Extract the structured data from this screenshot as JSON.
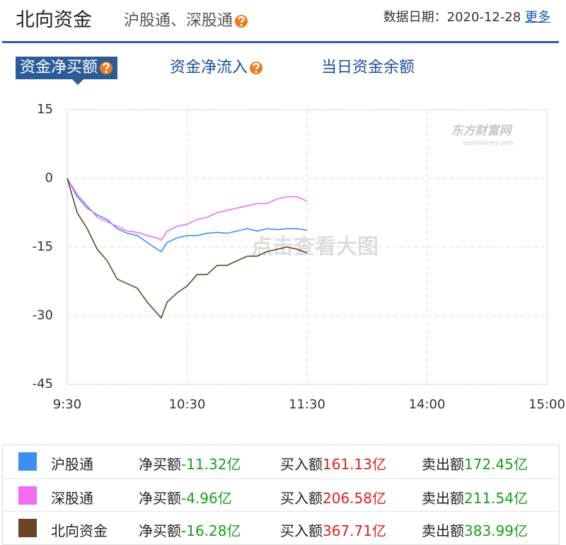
{
  "header": {
    "title": "北向资金",
    "subtitle": "沪股通、深股通",
    "date_label": "数据日期：",
    "date": "2020-12-28",
    "more": "更多"
  },
  "tabs": [
    "资金净买额",
    "资金净流入",
    "当日资金余额"
  ],
  "chart_data": {
    "type": "line",
    "x": [
      0,
      5,
      10,
      15,
      20,
      25,
      30,
      35,
      40,
      45,
      47,
      50,
      55,
      60,
      65,
      70,
      75,
      80,
      85,
      90,
      95,
      100,
      105,
      110,
      115,
      120
    ],
    "xlim": [
      0,
      240
    ],
    "xticks": [
      {
        "value": 0,
        "label": "9:30"
      },
      {
        "value": 60,
        "label": "10:30"
      },
      {
        "value": 120,
        "label": "11:30"
      },
      {
        "value": 180,
        "label": "14:00"
      },
      {
        "value": 240,
        "label": "15:00"
      }
    ],
    "ylim": [
      -45,
      15
    ],
    "yticks": [
      15,
      0,
      -15,
      -30,
      -45
    ],
    "grid": true,
    "watermark": [
      "东方财富网",
      "eastmoney.com"
    ],
    "overlay_text": "点击查看大图",
    "series": [
      {
        "name": "沪股通",
        "color": "#3b8ff3",
        "values": [
          0,
          -4,
          -6.5,
          -8,
          -9,
          -11,
          -12,
          -12.5,
          -14,
          -15.5,
          -16,
          -14,
          -13,
          -12.5,
          -12.5,
          -12,
          -11.8,
          -12,
          -11.5,
          -11,
          -11.5,
          -11,
          -11.2,
          -11,
          -11,
          -11.32
        ]
      },
      {
        "name": "深股通",
        "color": "#f26cf2",
        "values": [
          0,
          -3.5,
          -6,
          -8.5,
          -9.5,
          -10.5,
          -11.5,
          -11.8,
          -12.5,
          -13,
          -13.5,
          -11.5,
          -10.5,
          -10,
          -9,
          -8.5,
          -7.5,
          -7,
          -6.5,
          -6,
          -5.5,
          -5.5,
          -4.5,
          -4,
          -4,
          -4.96
        ]
      },
      {
        "name": "北向资金",
        "color": "#6b4423",
        "values": [
          0,
          -7.5,
          -11,
          -15.5,
          -18,
          -22,
          -23,
          -24,
          -27,
          -29.5,
          -30.5,
          -27,
          -25,
          -23.5,
          -21,
          -21,
          -19,
          -19,
          -18,
          -17,
          -17,
          -16,
          -15.5,
          -15,
          -15.5,
          -16.28
        ]
      }
    ]
  },
  "summary": {
    "columns": [
      "净买额",
      "买入额",
      "卖出额"
    ],
    "rows": [
      [
        "-11.32亿",
        "161.13亿",
        "172.45亿"
      ],
      [
        "-4.96亿",
        "206.58亿",
        "211.54亿"
      ],
      [
        "-16.28亿",
        "367.71亿",
        "383.99亿"
      ]
    ]
  }
}
